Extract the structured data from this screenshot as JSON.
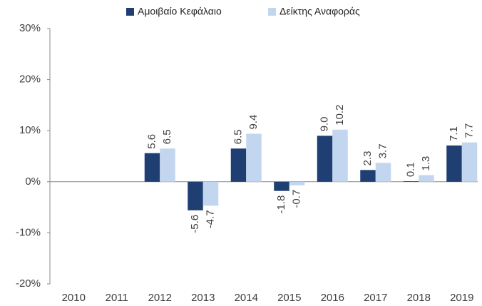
{
  "chart_data": {
    "type": "bar",
    "categories": [
      "2010",
      "2011",
      "2012",
      "2013",
      "2014",
      "2015",
      "2016",
      "2017",
      "2018",
      "2019"
    ],
    "series": [
      {
        "name": "Αμοιβαίο Κεφάλαιο",
        "color": "#1f3f73",
        "values": [
          null,
          null,
          5.6,
          -5.6,
          6.5,
          -1.8,
          9.0,
          2.3,
          0.1,
          7.1
        ],
        "value_labels": [
          null,
          null,
          "5.6",
          "-5.6",
          "6.5",
          "-1.8",
          "9.0",
          "2.3",
          "0.1",
          "7.1"
        ]
      },
      {
        "name": "Δείκτης Αναφοράς",
        "color": "#c3d6f0",
        "values": [
          null,
          null,
          6.5,
          -4.7,
          9.4,
          -0.7,
          10.2,
          3.7,
          1.3,
          7.7
        ],
        "value_labels": [
          null,
          null,
          "6.5",
          "-4.7",
          "9.4",
          "-0.7",
          "10.2",
          "3.7",
          "1.3",
          "7.7"
        ]
      }
    ],
    "ylim": [
      -20,
      30
    ],
    "yticks": [
      {
        "value": -20,
        "label": "-20%"
      },
      {
        "value": -10,
        "label": "-10%"
      },
      {
        "value": 0,
        "label": "0%"
      },
      {
        "value": 10,
        "label": "10%"
      },
      {
        "value": 20,
        "label": "20%"
      },
      {
        "value": 30,
        "label": "30%"
      }
    ],
    "legend": "top",
    "grid": false
  }
}
